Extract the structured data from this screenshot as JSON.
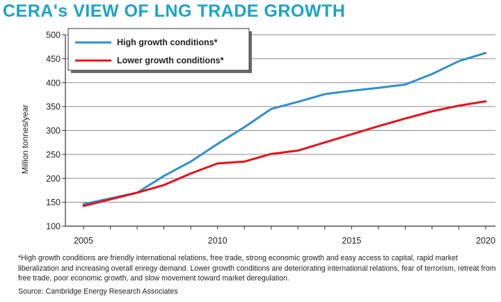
{
  "title": "CERA's VIEW OF LNG TRADE GROWTH",
  "footnote": "*High growth conditions are friendly international relations, free trade, strong economic growth and easy access to capital, rapid market liberalization and increasing overall enregy demand. Lower growth conditions are deteriorating international relations, fear of terrorism, retreat from free trade, poor economic growth, and slow movement toward market deregulation.",
  "source": "Source: Cambridge Energy Research Associates",
  "colors": {
    "title": "#1aa4c8",
    "high": "#2e8fd0",
    "low": "#e8101a"
  },
  "chart_data": {
    "type": "line",
    "title": "CERA's VIEW OF LNG TRADE GROWTH",
    "ylabel": "Million tonnes/year",
    "xlabel": "",
    "ylim": [
      100,
      500
    ],
    "xlim": [
      2005,
      2020
    ],
    "yticks": [
      100,
      150,
      200,
      250,
      300,
      350,
      400,
      450,
      500
    ],
    "xticks": [
      2005,
      2010,
      2015,
      2020
    ],
    "grid": "horizontal",
    "legend_position": "top-left",
    "series": [
      {
        "name": "High growth conditions*",
        "color": "#2e8fd0",
        "x": [
          2005,
          2007,
          2008,
          2009,
          2010,
          2011,
          2012,
          2013,
          2014,
          2015,
          2016,
          2017,
          2018,
          2019,
          2020
        ],
        "values": [
          146,
          170,
          205,
          235,
          272,
          307,
          345,
          360,
          376,
          383,
          389,
          396,
          418,
          445,
          462
        ]
      },
      {
        "name": "Lower growth conditions*",
        "color": "#e8101a",
        "x": [
          2005,
          2007,
          2008,
          2009,
          2010,
          2011,
          2012,
          2013,
          2014,
          2015,
          2016,
          2017,
          2018,
          2019,
          2020
        ],
        "values": [
          142,
          170,
          186,
          210,
          231,
          235,
          251,
          258,
          275,
          292,
          309,
          325,
          340,
          352,
          361
        ]
      }
    ]
  }
}
